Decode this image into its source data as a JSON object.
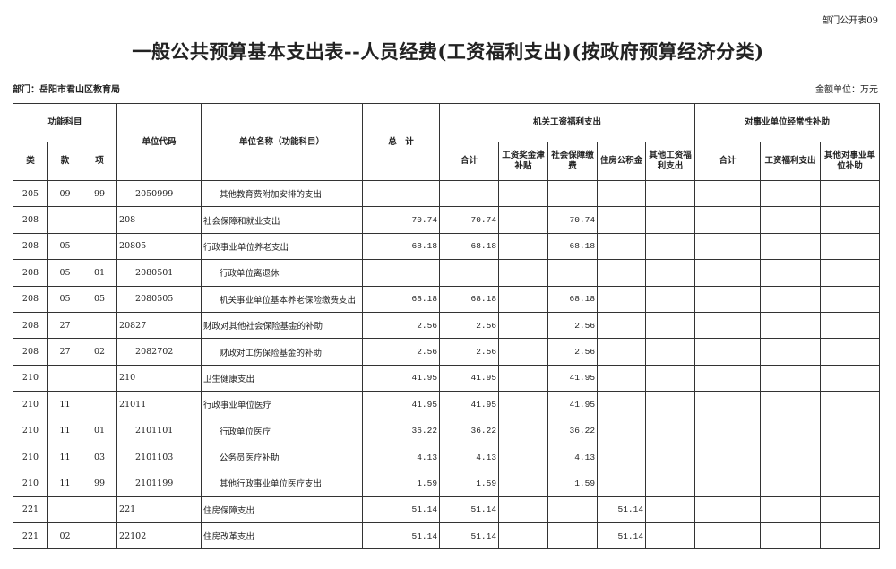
{
  "corner_label": "部门公开表09",
  "title": "一般公共预算基本支出表--人员经费(工资福利支出)(按政府预算经济分类)",
  "department": "部门：岳阳市君山区教育局",
  "unit": "金额单位：万元",
  "headers": {
    "func": "功能科目",
    "lei": "类",
    "kuan": "款",
    "xiang": "项",
    "code": "单位代码",
    "name": "单位名称（功能科目）",
    "total": "总　计",
    "jiguan": "机关工资福利支出",
    "jg_sum": "合计",
    "jg_wage": "工资奖金津补贴",
    "jg_social": "社会保障缴费",
    "jg_housing": "住房公积金",
    "jg_other": "其他工资福利支出",
    "shiye": "对事业单位经常性补助",
    "sy_sum": "合计",
    "sy_wage": "工资福利支出",
    "sy_other": "其他对事业单位补助"
  },
  "rows": [
    {
      "lei": "205",
      "kuan": "09",
      "xiang": "99",
      "code": "2050999",
      "name": "其他教育费附加安排的支出",
      "indent": true,
      "total": "",
      "jg_sum": "",
      "jg_social": "",
      "jg_housing": ""
    },
    {
      "lei": "208",
      "kuan": "",
      "xiang": "",
      "code": "208",
      "name": "社会保障和就业支出",
      "indent": false,
      "total": "70.74",
      "jg_sum": "70.74",
      "jg_social": "70.74",
      "jg_housing": ""
    },
    {
      "lei": "208",
      "kuan": "05",
      "xiang": "",
      "code": "20805",
      "name": "行政事业单位养老支出",
      "indent": false,
      "total": "68.18",
      "jg_sum": "68.18",
      "jg_social": "68.18",
      "jg_housing": ""
    },
    {
      "lei": "208",
      "kuan": "05",
      "xiang": "01",
      "code": "2080501",
      "name": "行政单位离退休",
      "indent": true,
      "total": "",
      "jg_sum": "",
      "jg_social": "",
      "jg_housing": ""
    },
    {
      "lei": "208",
      "kuan": "05",
      "xiang": "05",
      "code": "2080505",
      "name": "机关事业单位基本养老保险缴费支出",
      "indent": true,
      "total": "68.18",
      "jg_sum": "68.18",
      "jg_social": "68.18",
      "jg_housing": ""
    },
    {
      "lei": "208",
      "kuan": "27",
      "xiang": "",
      "code": "20827",
      "name": "财政对其他社会保险基金的补助",
      "indent": false,
      "total": "2.56",
      "jg_sum": "2.56",
      "jg_social": "2.56",
      "jg_housing": ""
    },
    {
      "lei": "208",
      "kuan": "27",
      "xiang": "02",
      "code": "2082702",
      "name": "财政对工伤保险基金的补助",
      "indent": true,
      "total": "2.56",
      "jg_sum": "2.56",
      "jg_social": "2.56",
      "jg_housing": ""
    },
    {
      "lei": "210",
      "kuan": "",
      "xiang": "",
      "code": "210",
      "name": "卫生健康支出",
      "indent": false,
      "total": "41.95",
      "jg_sum": "41.95",
      "jg_social": "41.95",
      "jg_housing": ""
    },
    {
      "lei": "210",
      "kuan": "11",
      "xiang": "",
      "code": "21011",
      "name": "行政事业单位医疗",
      "indent": false,
      "total": "41.95",
      "jg_sum": "41.95",
      "jg_social": "41.95",
      "jg_housing": ""
    },
    {
      "lei": "210",
      "kuan": "11",
      "xiang": "01",
      "code": "2101101",
      "name": "行政单位医疗",
      "indent": true,
      "total": "36.22",
      "jg_sum": "36.22",
      "jg_social": "36.22",
      "jg_housing": ""
    },
    {
      "lei": "210",
      "kuan": "11",
      "xiang": "03",
      "code": "2101103",
      "name": "公务员医疗补助",
      "indent": true,
      "total": "4.13",
      "jg_sum": "4.13",
      "jg_social": "4.13",
      "jg_housing": ""
    },
    {
      "lei": "210",
      "kuan": "11",
      "xiang": "99",
      "code": "2101199",
      "name": "其他行政事业单位医疗支出",
      "indent": true,
      "total": "1.59",
      "jg_sum": "1.59",
      "jg_social": "1.59",
      "jg_housing": ""
    },
    {
      "lei": "221",
      "kuan": "",
      "xiang": "",
      "code": "221",
      "name": "住房保障支出",
      "indent": false,
      "total": "51.14",
      "jg_sum": "51.14",
      "jg_social": "",
      "jg_housing": "51.14"
    },
    {
      "lei": "221",
      "kuan": "02",
      "xiang": "",
      "code": "22102",
      "name": "住房改革支出",
      "indent": false,
      "total": "51.14",
      "jg_sum": "51.14",
      "jg_social": "",
      "jg_housing": "51.14"
    }
  ]
}
